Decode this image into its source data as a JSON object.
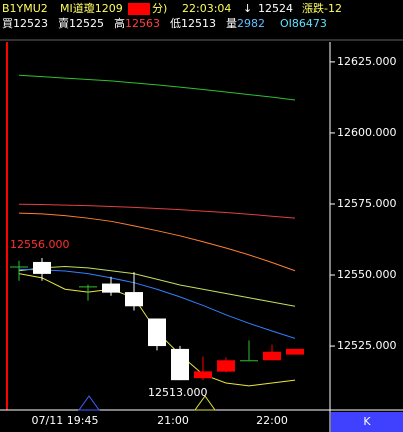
{
  "header": {
    "symbol": "B1YMU2",
    "name": "MI道瓊1209",
    "period": "分)",
    "time": "22:03:04",
    "arrow": "↓",
    "last": "12524",
    "change": "漲跌-12",
    "bid": "買12523",
    "ask": "賣12525",
    "high_label": "高",
    "high": "12563",
    "low": "低12513",
    "volume_label": "量",
    "volume": "2982",
    "oi": "OI86473"
  },
  "chart_data": {
    "type": "candlestick",
    "categories": [
      null,
      null,
      "07/11 19:45",
      null,
      null,
      null,
      null,
      "21:00",
      null,
      null,
      null,
      "22:00",
      null
    ],
    "open": [
      12553,
      12554.6,
      null,
      12546,
      12547,
      12544,
      12534.7,
      12524,
      12513.7,
      12516,
      12520,
      12520,
      12522
    ],
    "high": [
      12555,
      12556,
      null,
      12546.6,
      12549.4,
      12551,
      12534.7,
      12525,
      12521.3,
      12521,
      12527,
      12525.5,
      12524
    ],
    "low": [
      12548,
      12548,
      null,
      12541,
      12542.7,
      12537.5,
      12523.5,
      12513,
      12513,
      12515.8,
      12520,
      12520,
      12522
    ],
    "close": [
      12553,
      12550.4,
      null,
      12546,
      12543.8,
      12539,
      12525,
      12513,
      12516.1,
      12520,
      12520,
      12523,
      12524
    ],
    "up_color": "#ff0000",
    "down_color": "#ffffff",
    "lines": [
      {
        "color": "#30c030",
        "values": [
          12620.3,
          12619.8,
          12619.3,
          12618.8,
          12618.3,
          12617.6,
          12616.9,
          12616.1,
          12615.3,
          12614.4,
          12613.5,
          12612.6,
          12611.6
        ]
      },
      {
        "color": "#e04040",
        "values": [
          12574.9,
          12574.8,
          12574.6,
          12574.4,
          12574.1,
          12573.8,
          12573.4,
          12573,
          12572.5,
          12572,
          12571.4,
          12570.7,
          12570
        ]
      },
      {
        "color": "#ff8030",
        "values": [
          12571.8,
          12571.5,
          12570.9,
          12570,
          12568.9,
          12567.3,
          12565.6,
          12563.8,
          12561.7,
          12559.5,
          12557.1,
          12554.4,
          12551.5
        ]
      },
      {
        "color": "#c0e060",
        "values": [
          12551.5,
          12552.5,
          12553,
          12552.5,
          12551.5,
          12550.5,
          12548.5,
          12546.5,
          12545,
          12543.5,
          12542,
          12540.5,
          12539
        ]
      },
      {
        "color": "#3080ff",
        "values": [
          12552,
          12551.8,
          12551.4,
          12550.5,
          12549,
          12547.3,
          12545,
          12542.3,
          12539.3,
          12536,
          12533,
          12530.3,
          12527.7
        ]
      },
      {
        "color": "#e8e840",
        "values": [
          12550.5,
          12549,
          12545,
          12544,
          12545,
          12542,
          12530,
          12522,
          12515,
          12512,
          12511,
          12512,
          12513
        ]
      }
    ],
    "ylim": [
      12502.5,
      12632
    ],
    "yticks": [
      {
        "value": 12525,
        "label": "12525.000"
      },
      {
        "value": 12550,
        "label": "12550.000"
      },
      {
        "value": 12575,
        "label": "12575.000"
      },
      {
        "value": 12600,
        "label": "12600.000"
      },
      {
        "value": 12625,
        "label": "12625.000"
      }
    ],
    "annotations": [
      {
        "value": 12556,
        "label": "12556.000",
        "color": "#ff3030"
      },
      {
        "value": 12513,
        "label": "12513.000",
        "color": "#ffffff"
      }
    ],
    "mode_button": "K"
  }
}
